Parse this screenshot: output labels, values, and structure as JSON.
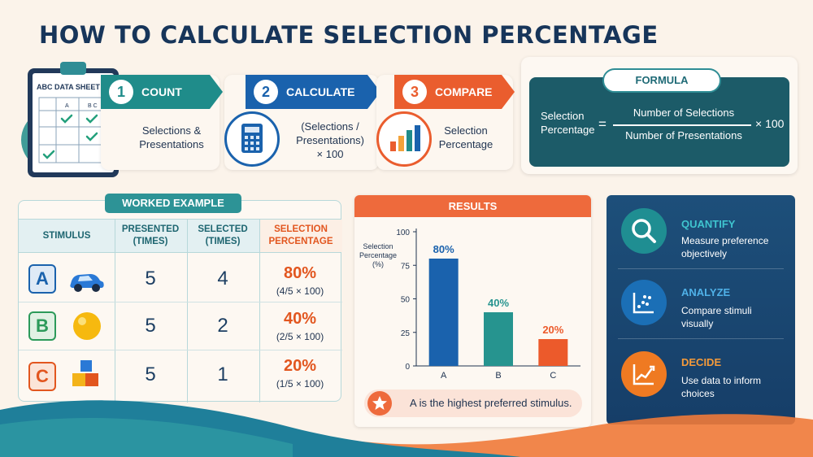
{
  "title": "HOW TO CALCULATE SELECTION PERCENTAGE",
  "clipboard": {
    "sheet_title": "ABC DATA SHEET",
    "columns": [
      "A",
      "B C"
    ]
  },
  "steps": [
    {
      "num": "1",
      "title": "COUNT",
      "desc": "Selections &\nPresentations",
      "color": "#1f8c8a"
    },
    {
      "num": "2",
      "title": "CALCULATE",
      "desc": "(Selections /\nPresentations)\n× 100",
      "color": "#1a62ad"
    },
    {
      "num": "3",
      "title": "COMPARE",
      "desc": "Selection\nPercentage",
      "color": "#ea5d2e"
    }
  ],
  "formula": {
    "heading": "FORMULA",
    "lhs": "Selection\nPercentage",
    "equals": "=",
    "numerator": "Number of Selections",
    "denominator": "Number of Presentations",
    "multiplier": "× 100"
  },
  "worked_example": {
    "heading": "WORKED EXAMPLE",
    "columns": [
      "STIMULUS",
      "PRESENTED\n(TIMES)",
      "SELECTED\n(TIMES)",
      "SELECTION\nPERCENTAGE"
    ],
    "rows": [
      {
        "letter": "A",
        "color": "#1a62ad",
        "bg": "#dfeaf6",
        "presented": "5",
        "selected": "4",
        "pct": "80%",
        "calc": "(4/5 × 100)"
      },
      {
        "letter": "B",
        "color": "#2c9a5a",
        "bg": "#e1f1e4",
        "presented": "5",
        "selected": "2",
        "pct": "40%",
        "calc": "(2/5 × 100)"
      },
      {
        "letter": "C",
        "color": "#e2561f",
        "bg": "#fbe4d8",
        "presented": "5",
        "selected": "1",
        "pct": "20%",
        "calc": "(1/5 × 100)"
      }
    ]
  },
  "results": {
    "heading": "RESULTS",
    "ylabel": "Selection\nPercentage\n(%)",
    "note": "A is the highest preferred stimulus."
  },
  "chart_data": {
    "type": "bar",
    "categories": [
      "A",
      "B",
      "C"
    ],
    "values": [
      80,
      40,
      20
    ],
    "labels": [
      "80%",
      "40%",
      "20%"
    ],
    "colors": [
      "#1a62ad",
      "#26948f",
      "#ec5a2b"
    ],
    "ylabel": "Selection Percentage (%)",
    "ylim": [
      0,
      100
    ],
    "yticks": [
      0,
      25,
      50,
      75,
      100
    ],
    "grid": false
  },
  "benefits": [
    {
      "title": "QUANTIFY",
      "desc": "Measure preference\nobjectively",
      "icon": "magnifier-icon",
      "color": "#3fc4cf",
      "circle": "#1f8e92"
    },
    {
      "title": "ANALYZE",
      "desc": "Compare stimuli\nvisually",
      "icon": "scatter-chart-icon",
      "color": "#4fb1e8",
      "circle": "#1b6fb6"
    },
    {
      "title": "DECIDE",
      "desc": "Use data to inform\nchoices",
      "icon": "trend-chart-icon",
      "color": "#f59a3a",
      "circle": "#ef7a22"
    }
  ]
}
